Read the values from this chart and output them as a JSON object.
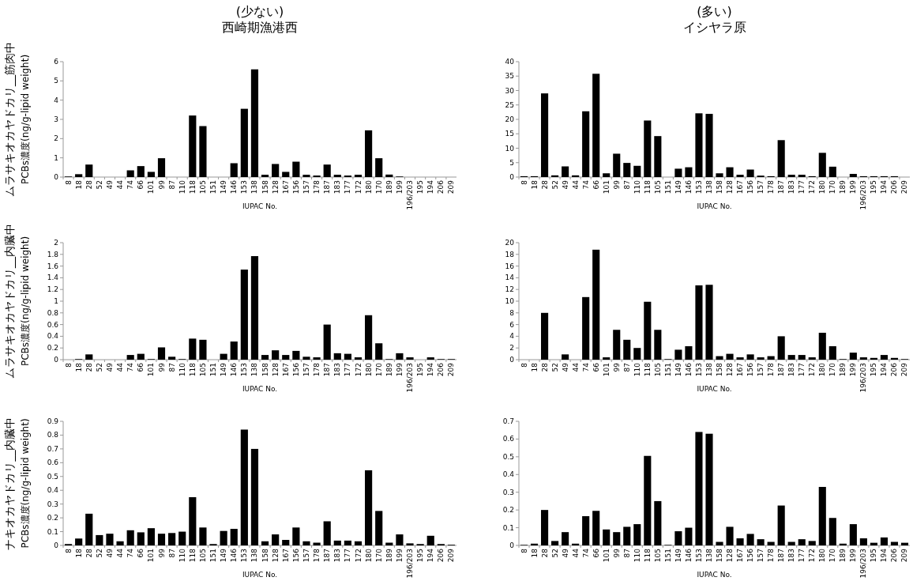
{
  "chart_data": [
    {
      "type": "bar",
      "title": "(少ない)\n西崎期漁港西",
      "ylabel": "ムラサキオカヤドカリ__筋肉中\nPCBs濃度(ng/g-lipid weight)",
      "xlabel": "IUPAC No.",
      "color": "#000000",
      "ylim": [
        0,
        6
      ],
      "yticks": [
        0,
        1,
        2,
        3,
        4,
        5,
        6
      ],
      "categories": [
        "8",
        "18",
        "28",
        "52",
        "49",
        "44",
        "74",
        "66",
        "101",
        "99",
        "87",
        "110",
        "118",
        "105",
        "151",
        "149",
        "146",
        "153",
        "138",
        "158",
        "128",
        "167",
        "156",
        "157",
        "178",
        "187",
        "183",
        "177",
        "172",
        "180",
        "170",
        "189",
        "199",
        "196/203",
        "195",
        "194",
        "206",
        "209"
      ],
      "values": [
        0.03,
        0.15,
        0.65,
        0,
        0,
        0,
        0.35,
        0.57,
        0.27,
        0.98,
        0,
        0,
        3.2,
        2.65,
        0,
        0,
        0.72,
        3.55,
        5.6,
        0.12,
        0.68,
        0.27,
        0.8,
        0.12,
        0.08,
        0.65,
        0.12,
        0.08,
        0.12,
        2.43,
        0.98,
        0.13,
        0.03,
        0,
        0,
        0,
        0,
        0
      ]
    },
    {
      "type": "bar",
      "title": "(多い)\nイシヤラ原",
      "xlabel": "IUPAC No.",
      "color": "#000000",
      "ylim": [
        0,
        40
      ],
      "yticks": [
        0,
        5,
        10,
        15,
        20,
        25,
        30,
        35,
        40
      ],
      "categories": [
        "8",
        "18",
        "28",
        "52",
        "49",
        "44",
        "74",
        "66",
        "101",
        "99",
        "87",
        "110",
        "118",
        "105",
        "151",
        "149",
        "146",
        "153",
        "138",
        "158",
        "128",
        "167",
        "156",
        "157",
        "178",
        "187",
        "183",
        "177",
        "172",
        "180",
        "170",
        "189",
        "199",
        "196/203",
        "195",
        "194",
        "206",
        "209"
      ],
      "values": [
        0.3,
        0.3,
        29,
        0.6,
        3.7,
        0.6,
        22.8,
        35.8,
        1.3,
        8.1,
        4.9,
        3.9,
        19.6,
        14.2,
        0,
        2.9,
        3.4,
        22.1,
        21.9,
        1.3,
        3.4,
        0.8,
        2.6,
        0.5,
        0.3,
        12.8,
        0.8,
        0.8,
        0.3,
        8.4,
        3.6,
        0,
        1.1,
        0.3,
        0.3,
        0.3,
        0.3,
        0
      ]
    },
    {
      "type": "bar",
      "ylabel": "ムラサキオカヤドカリ__内臓中\nPCBs濃度(ng/g-lipid weight)",
      "xlabel": "IUPAC No.",
      "color": "#000000",
      "ylim": [
        0,
        2
      ],
      "yticks": [
        0,
        0.2,
        0.4,
        0.6,
        0.8,
        1,
        1.2,
        1.4,
        1.6,
        1.8,
        2
      ],
      "categories": [
        "8",
        "18",
        "28",
        "52",
        "49",
        "44",
        "74",
        "66",
        "101",
        "99",
        "87",
        "110",
        "118",
        "105",
        "151",
        "149",
        "146",
        "153",
        "138",
        "158",
        "128",
        "167",
        "156",
        "157",
        "178",
        "187",
        "183",
        "177",
        "172",
        "180",
        "170",
        "189",
        "199",
        "196/203",
        "195",
        "194",
        "206",
        "209"
      ],
      "values": [
        0,
        0.01,
        0.09,
        0,
        0,
        0,
        0.08,
        0.1,
        0.01,
        0.21,
        0.05,
        0.01,
        0.36,
        0.34,
        0,
        0.1,
        0.31,
        1.54,
        1.77,
        0.08,
        0.16,
        0.08,
        0.15,
        0.05,
        0.04,
        0.6,
        0.11,
        0.1,
        0.04,
        0.76,
        0.28,
        0.01,
        0.11,
        0.04,
        0,
        0.04,
        0.01,
        0.01
      ]
    },
    {
      "type": "bar",
      "xlabel": "IUPAC No.",
      "color": "#000000",
      "ylim": [
        0,
        20
      ],
      "yticks": [
        0,
        2,
        4,
        6,
        8,
        10,
        12,
        14,
        16,
        18,
        20
      ],
      "categories": [
        "8",
        "18",
        "28",
        "52",
        "49",
        "44",
        "74",
        "66",
        "101",
        "99",
        "87",
        "110",
        "118",
        "105",
        "151",
        "149",
        "146",
        "153",
        "138",
        "158",
        "128",
        "167",
        "156",
        "157",
        "178",
        "187",
        "183",
        "177",
        "172",
        "180",
        "170",
        "189",
        "199",
        "196/203",
        "195",
        "194",
        "206",
        "209"
      ],
      "values": [
        0,
        0,
        8,
        0,
        0.9,
        0,
        10.7,
        18.8,
        0.4,
        5.1,
        3.4,
        2,
        9.9,
        5.1,
        0.1,
        1.7,
        2.3,
        12.7,
        12.8,
        0.6,
        1,
        0.4,
        0.9,
        0.4,
        0.6,
        4,
        0.8,
        0.8,
        0.4,
        4.6,
        2.3,
        0.1,
        1.2,
        0.4,
        0.3,
        0.8,
        0.3,
        0.1
      ]
    },
    {
      "type": "bar",
      "ylabel": "ナキオカヤドカリ__内臓中\nPCBs濃度(ng/g-lipid weight)",
      "xlabel": "IUPAC No.",
      "color": "#000000",
      "ylim": [
        0,
        0.9
      ],
      "yticks": [
        0,
        0.1,
        0.2,
        0.3,
        0.4,
        0.5,
        0.6,
        0.7,
        0.8,
        0.9
      ],
      "categories": [
        "8",
        "18",
        "28",
        "52",
        "49",
        "44",
        "74",
        "66",
        "101",
        "99",
        "87",
        "110",
        "118",
        "105",
        "151",
        "149",
        "146",
        "153",
        "138",
        "158",
        "128",
        "167",
        "156",
        "157",
        "178",
        "187",
        "183",
        "177",
        "172",
        "180",
        "170",
        "189",
        "199",
        "196/203",
        "195",
        "194",
        "206",
        "209"
      ],
      "values": [
        0.01,
        0.05,
        0.23,
        0.075,
        0.085,
        0.03,
        0.11,
        0.095,
        0.125,
        0.085,
        0.09,
        0.1,
        0.35,
        0.13,
        0.01,
        0.105,
        0.12,
        0.84,
        0.7,
        0.03,
        0.08,
        0.04,
        0.13,
        0.03,
        0.02,
        0.175,
        0.035,
        0.035,
        0.03,
        0.545,
        0.25,
        0.02,
        0.08,
        0.015,
        0.01,
        0.07,
        0.01,
        0.005
      ]
    },
    {
      "type": "bar",
      "xlabel": "IUPAC No.",
      "color": "#000000",
      "ylim": [
        0,
        0.7
      ],
      "yticks": [
        0,
        0.1,
        0.2,
        0.3,
        0.4,
        0.5,
        0.6,
        0.7
      ],
      "categories": [
        "8",
        "18",
        "28",
        "52",
        "49",
        "44",
        "74",
        "66",
        "101",
        "99",
        "87",
        "110",
        "118",
        "105",
        "151",
        "149",
        "146",
        "153",
        "138",
        "158",
        "128",
        "167",
        "156",
        "157",
        "178",
        "187",
        "183",
        "177",
        "172",
        "180",
        "170",
        "189",
        "199",
        "196/203",
        "195",
        "194",
        "206",
        "209"
      ],
      "values": [
        0.003,
        0.01,
        0.2,
        0.025,
        0.075,
        0.01,
        0.165,
        0.195,
        0.09,
        0.075,
        0.105,
        0.12,
        0.505,
        0.25,
        0.003,
        0.08,
        0.1,
        0.64,
        0.63,
        0.02,
        0.105,
        0.04,
        0.065,
        0.035,
        0.02,
        0.225,
        0.02,
        0.035,
        0.025,
        0.33,
        0.155,
        0.01,
        0.12,
        0.04,
        0.015,
        0.045,
        0.02,
        0.015
      ]
    }
  ]
}
